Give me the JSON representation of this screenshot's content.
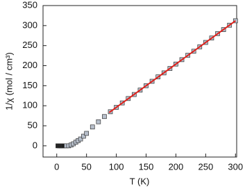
{
  "chart_data": {
    "type": "scatter",
    "xlabel": "T (K)",
    "ylabel": "1/χ (mol / cm³)",
    "xlim": [
      -23,
      302
    ],
    "ylim": [
      -28,
      350
    ],
    "xticks": [
      0,
      50,
      100,
      150,
      200,
      250,
      300
    ],
    "yticks": [
      0,
      50,
      100,
      150,
      200,
      250,
      300,
      350
    ],
    "series": [
      {
        "color": "#1a1a1a",
        "x": [
          2,
          4,
          6,
          8,
          10,
          12
        ],
        "values": [
          0,
          0,
          0,
          0,
          0,
          0
        ]
      },
      {
        "color": "#b7bfcb",
        "x": [
          16,
          20,
          24,
          28,
          32,
          36,
          40,
          45,
          50,
          60,
          70,
          80,
          90,
          100,
          110,
          120,
          130,
          140,
          150,
          160,
          170,
          180,
          190,
          200,
          210,
          220,
          230,
          240,
          250,
          260,
          270,
          280,
          290,
          300
        ],
        "values": [
          0,
          0,
          2,
          5,
          9,
          13,
          17,
          24,
          31,
          47,
          60,
          73,
          85,
          96,
          107,
          118,
          128,
          139,
          150,
          161,
          172,
          182,
          193,
          204,
          215,
          226,
          236,
          247,
          258,
          269,
          280,
          290,
          301,
          312
        ]
      }
    ],
    "fit": {
      "type": "line",
      "color": "#e0201a",
      "x": [
        88,
        300
      ],
      "values": [
        83,
        312
      ]
    }
  }
}
